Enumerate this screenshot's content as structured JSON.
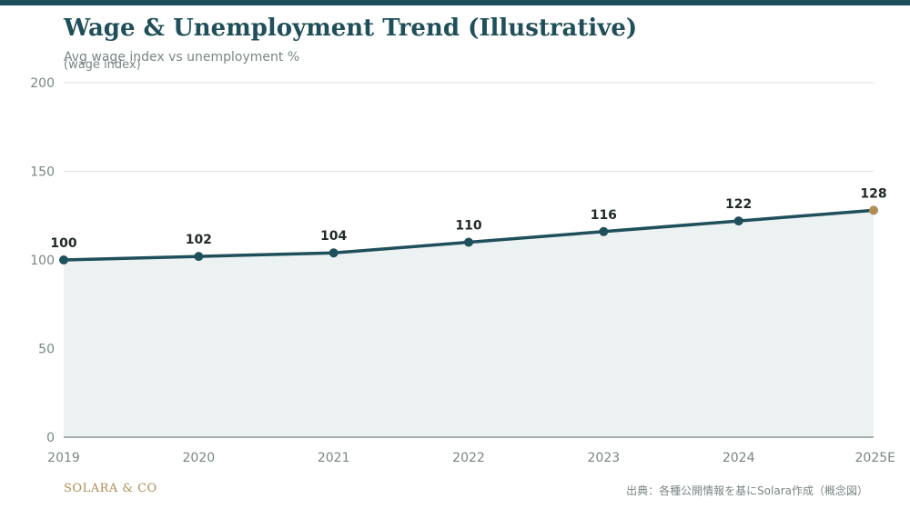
{
  "header": {
    "title": "Wage & Unemployment Trend (Illustrative)",
    "subtitle": "Avg wage index vs unemployment %"
  },
  "footer": {
    "brand": "SOLARA & CO",
    "source": "出典：各種公開情報を基にSolara作成（概念図）"
  },
  "colors": {
    "accent": "#1f4f5a",
    "highlight": "#b08d57",
    "area_fill": "#ecf2f2",
    "grid": "#dcdfe0",
    "text_muted": "#7a8585"
  },
  "chart_data": {
    "type": "area",
    "title": "Wage & Unemployment Trend (Illustrative)",
    "subtitle": "Avg wage index vs unemployment %",
    "xlabel": "",
    "ylabel": "(wage index)",
    "categories": [
      "2019",
      "2020",
      "2021",
      "2022",
      "2023",
      "2024",
      "2025E"
    ],
    "series": [
      {
        "values": [
          100,
          102,
          104,
          110,
          116,
          122,
          128
        ]
      }
    ],
    "highlight_index": 6,
    "ylim": [
      0,
      200
    ],
    "yticks": [
      0,
      50,
      100,
      150,
      200
    ],
    "grid": true,
    "data_labels": true,
    "legend": "none"
  }
}
